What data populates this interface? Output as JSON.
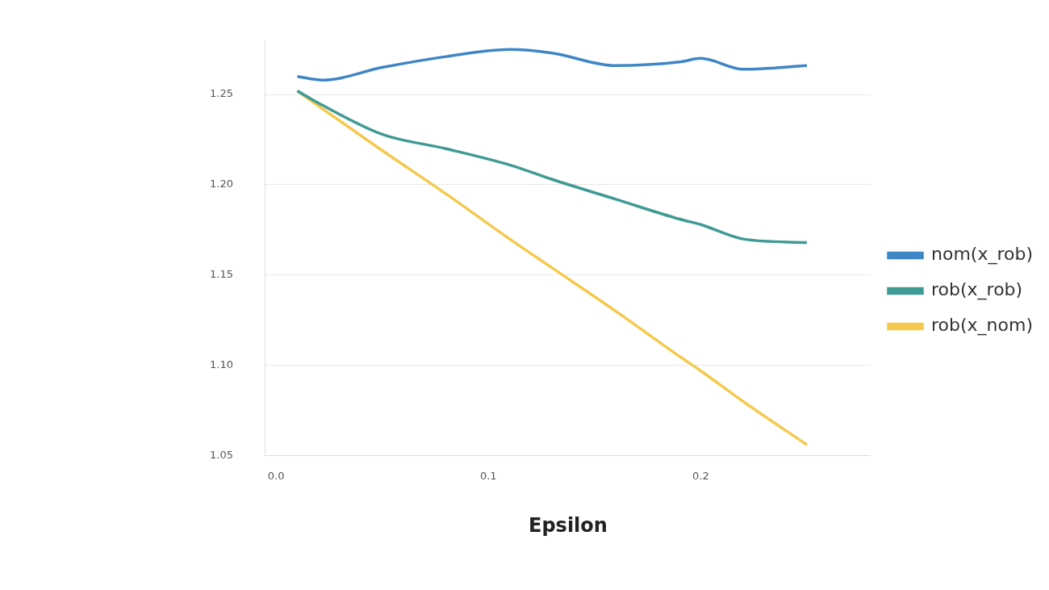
{
  "chart_data": {
    "type": "line",
    "xlabel": "Epsilon",
    "x": [
      0.01,
      0.022,
      0.05,
      0.08,
      0.11,
      0.13,
      0.16,
      0.19,
      0.2,
      0.22,
      0.25
    ],
    "series": [
      {
        "name": "nom(x_rob)",
        "color": "#3f86c6",
        "values": [
          1.26,
          1.258,
          1.265,
          1.271,
          1.275,
          1.273,
          1.266,
          1.268,
          1.27,
          1.264,
          1.266
        ]
      },
      {
        "name": "rob(x_rob)",
        "color": "#3f9a94",
        "values": [
          1.252,
          1.244,
          1.228,
          1.22,
          1.211,
          1.203,
          1.192,
          1.181,
          1.178,
          1.17,
          1.168
        ]
      },
      {
        "name": "rob(x_nom)",
        "color": "#f5c94e",
        "values": [
          1.252,
          1.242,
          1.219,
          1.195,
          1.17,
          1.154,
          1.13,
          1.105,
          1.097,
          1.08,
          1.056
        ]
      }
    ],
    "xlim": [
      -0.005,
      0.28
    ],
    "ylim": [
      1.05,
      1.28
    ],
    "xticks": [
      {
        "value": 0,
        "label": "0.0"
      },
      0.1,
      0.2
    ],
    "yticks": [
      1.05,
      {
        "value": 1.1,
        "label": "1.10"
      },
      1.15,
      {
        "value": 1.2,
        "label": "1.20"
      },
      1.25
    ],
    "grid": true,
    "legend": "right"
  }
}
